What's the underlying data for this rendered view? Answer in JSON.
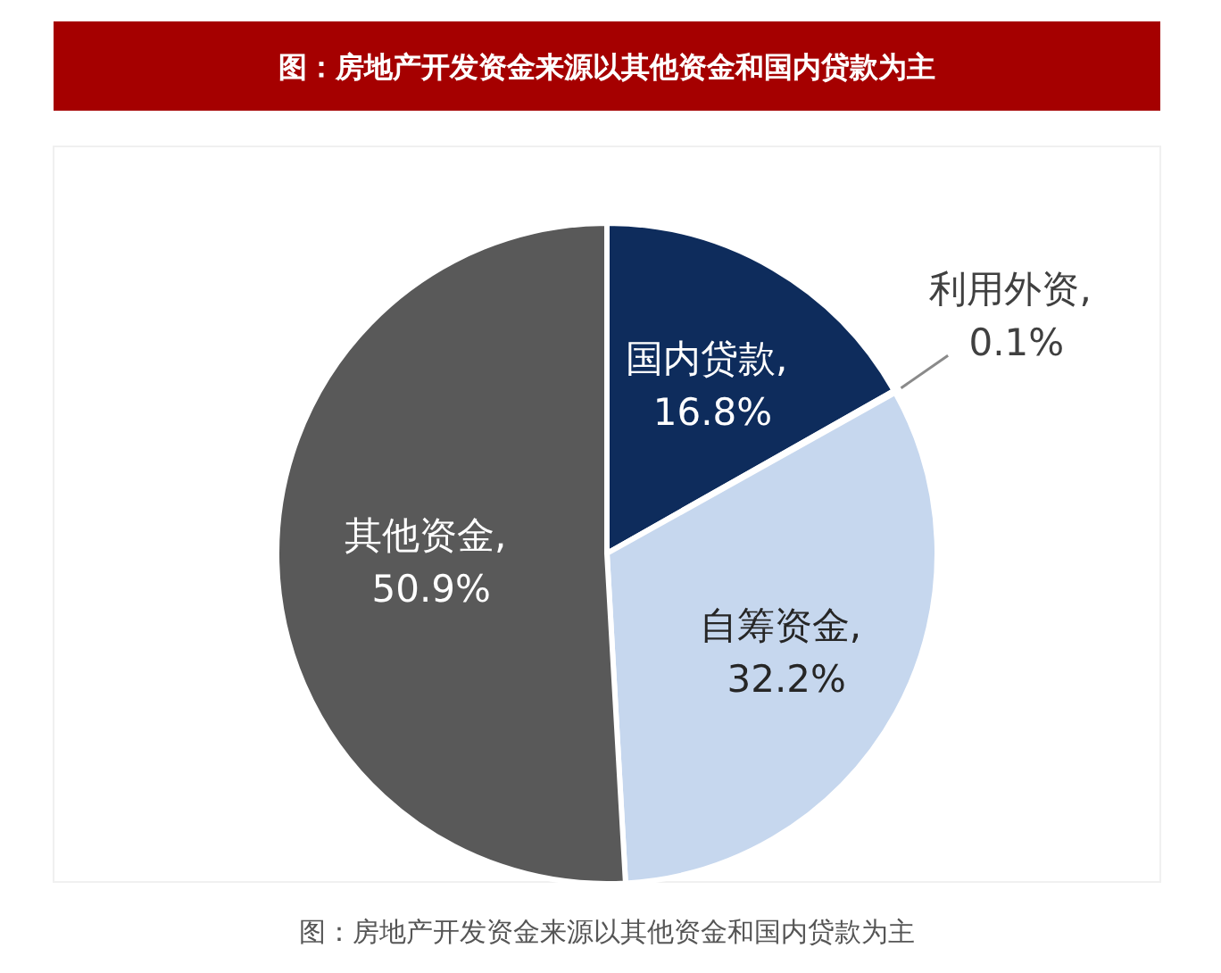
{
  "chart_data": {
    "type": "pie",
    "title": "图：房地产开发资金来源以其他资金和国内贷款为主",
    "categories": [
      "国内贷款",
      "利用外资",
      "自筹资金",
      "其他资金"
    ],
    "values": [
      16.8,
      0.1,
      32.2,
      50.9
    ],
    "value_labels": [
      ", 16.8%",
      ", 0.1%",
      ", 32.2%",
      ", 50.9%"
    ],
    "colors": [
      "#0e2c5c",
      "#dfe8f4",
      "#c6d7ee",
      "#595959"
    ],
    "annotations": [
      "图：房地产开发资金来源以其他资金和国内贷款为主"
    ]
  }
}
